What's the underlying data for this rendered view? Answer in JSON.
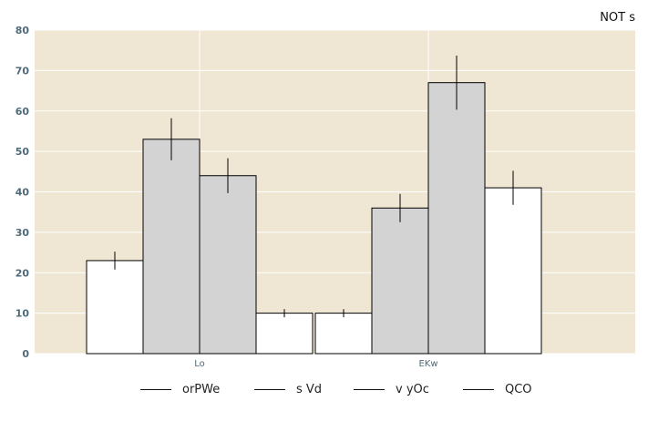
{
  "chart_data": {
    "type": "bar",
    "title": "NOT s",
    "xlabel": "",
    "ylabel": "",
    "ylim": [
      0,
      80
    ],
    "yticks": [
      0,
      10,
      20,
      30,
      40,
      50,
      60,
      70,
      80
    ],
    "grid": true,
    "legend_position": "bottom",
    "categories": [
      "Lo",
      "EKw"
    ],
    "series": [
      {
        "name": "orPWe",
        "values": [
          23,
          10
        ],
        "errors": [
          2.2,
          1.0
        ],
        "color": "#ffffff"
      },
      {
        "name": "s Vd",
        "values": [
          53,
          36
        ],
        "errors": [
          5.2,
          3.5
        ],
        "color": "#d3d3d3"
      },
      {
        "name": "v yOc",
        "values": [
          44,
          67
        ],
        "errors": [
          4.3,
          6.7
        ],
        "color": "#d3d3d3"
      },
      {
        "name": "QCO",
        "values": [
          10,
          41
        ],
        "errors": [
          1.0,
          4.2
        ],
        "color": "#ffffff"
      }
    ],
    "colors": {
      "plot_background": "#efe7d3",
      "grid": "#ffffff",
      "axis_text": "#4f6a7a",
      "edge": "#000000"
    }
  }
}
